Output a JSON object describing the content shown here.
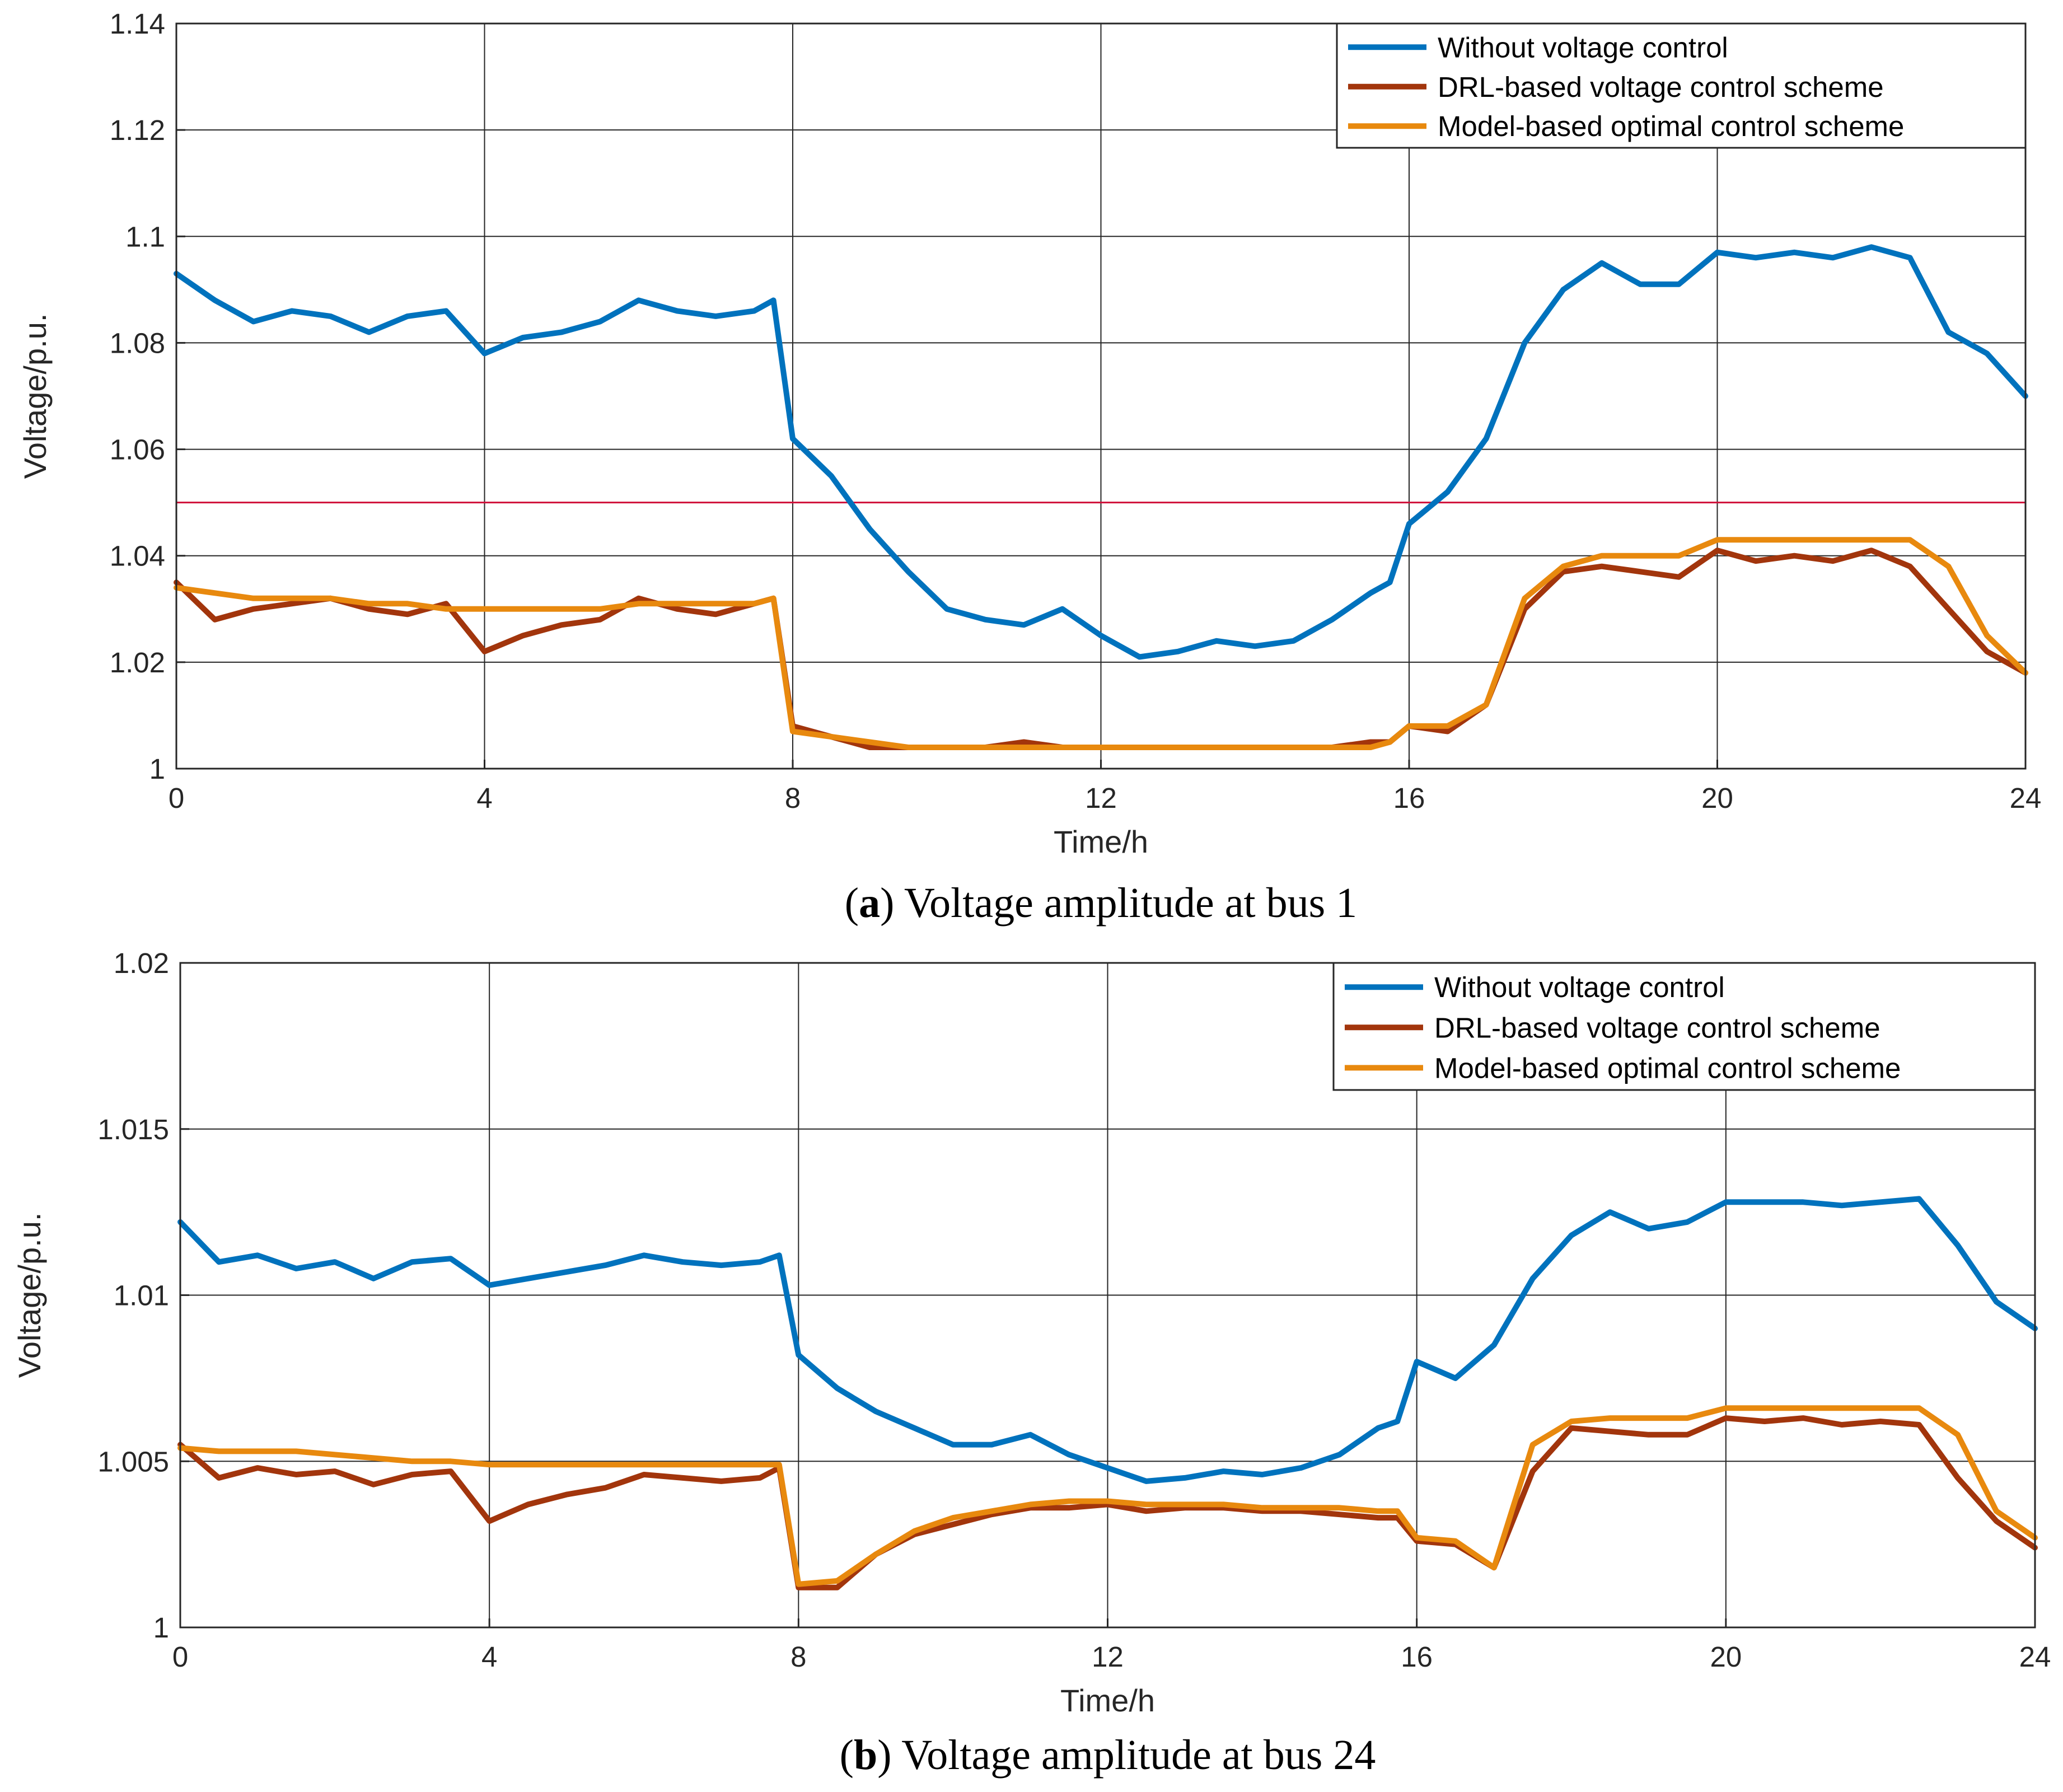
{
  "colors": {
    "without": "#0072BD",
    "drl": "#A2350C",
    "model": "#E8890E",
    "limit": "#D0103A",
    "grid": "#262626"
  },
  "legend": {
    "without": "Without voltage control",
    "drl": "DRL-based voltage control scheme",
    "model": "Model-based optimal control scheme"
  },
  "chart_data": [
    {
      "type": "line",
      "panel": "a",
      "caption_label": "a",
      "caption_text": "Voltage amplitude at bus 1",
      "xlabel": "Time/h",
      "ylabel": "Voltage/p.u.",
      "xlim": [
        0,
        24
      ],
      "ylim": [
        1,
        1.14
      ],
      "xticks": [
        0,
        4,
        8,
        12,
        16,
        20,
        24
      ],
      "xtick_labels": [
        "0",
        "4",
        "8",
        "12",
        "16",
        "20",
        "24"
      ],
      "yticks": [
        1,
        1.02,
        1.04,
        1.06,
        1.08,
        1.1,
        1.12,
        1.14
      ],
      "ytick_labels": [
        "1",
        "1.02",
        "1.04",
        "1.06",
        "1.08",
        "1.1",
        "1.12",
        "1.14"
      ],
      "legend_position": "top-right",
      "limit_line": 1.05,
      "x": [
        0,
        0.5,
        1,
        1.5,
        2,
        2.5,
        3,
        3.5,
        4,
        4.5,
        5,
        5.5,
        6,
        6.5,
        7,
        7.5,
        7.75,
        8,
        8.5,
        9,
        9.5,
        10,
        10.5,
        11,
        11.5,
        12,
        12.5,
        13,
        13.5,
        14,
        14.5,
        15,
        15.5,
        15.75,
        16,
        16.5,
        17,
        17.5,
        18,
        18.5,
        19,
        19.5,
        20,
        20.5,
        21,
        21.5,
        22,
        22.5,
        23,
        23.5,
        24
      ],
      "series": [
        {
          "key": "without",
          "name": "Without voltage control",
          "values": [
            1.093,
            1.088,
            1.084,
            1.086,
            1.085,
            1.082,
            1.085,
            1.086,
            1.078,
            1.081,
            1.082,
            1.084,
            1.088,
            1.086,
            1.085,
            1.086,
            1.088,
            1.062,
            1.055,
            1.045,
            1.037,
            1.03,
            1.028,
            1.027,
            1.03,
            1.025,
            1.021,
            1.022,
            1.024,
            1.023,
            1.024,
            1.028,
            1.033,
            1.035,
            1.046,
            1.052,
            1.062,
            1.08,
            1.09,
            1.095,
            1.091,
            1.091,
            1.097,
            1.096,
            1.097,
            1.096,
            1.098,
            1.096,
            1.082,
            1.078,
            1.07
          ]
        },
        {
          "key": "drl",
          "name": "DRL-based voltage control scheme",
          "values": [
            1.035,
            1.028,
            1.03,
            1.031,
            1.032,
            1.03,
            1.029,
            1.031,
            1.022,
            1.025,
            1.027,
            1.028,
            1.032,
            1.03,
            1.029,
            1.031,
            1.032,
            1.008,
            1.006,
            1.004,
            1.004,
            1.004,
            1.004,
            1.005,
            1.004,
            1.004,
            1.004,
            1.004,
            1.004,
            1.004,
            1.004,
            1.004,
            1.005,
            1.005,
            1.008,
            1.007,
            1.012,
            1.03,
            1.037,
            1.038,
            1.037,
            1.036,
            1.041,
            1.039,
            1.04,
            1.039,
            1.041,
            1.038,
            1.03,
            1.022,
            1.018
          ]
        },
        {
          "key": "model",
          "name": "Model-based optimal control scheme",
          "values": [
            1.034,
            1.033,
            1.032,
            1.032,
            1.032,
            1.031,
            1.031,
            1.03,
            1.03,
            1.03,
            1.03,
            1.03,
            1.031,
            1.031,
            1.031,
            1.031,
            1.032,
            1.007,
            1.006,
            1.005,
            1.004,
            1.004,
            1.004,
            1.004,
            1.004,
            1.004,
            1.004,
            1.004,
            1.004,
            1.004,
            1.004,
            1.004,
            1.004,
            1.005,
            1.008,
            1.008,
            1.012,
            1.032,
            1.038,
            1.04,
            1.04,
            1.04,
            1.043,
            1.043,
            1.043,
            1.043,
            1.043,
            1.043,
            1.038,
            1.025,
            1.018
          ]
        }
      ]
    },
    {
      "type": "line",
      "panel": "b",
      "caption_label": "b",
      "caption_text": "Voltage amplitude at bus 24",
      "xlabel": "Time/h",
      "ylabel": "Voltage/p.u.",
      "xlim": [
        0,
        24
      ],
      "ylim": [
        1,
        1.02
      ],
      "xticks": [
        0,
        4,
        8,
        12,
        16,
        20,
        24
      ],
      "xtick_labels": [
        "0",
        "4",
        "8",
        "12",
        "16",
        "20",
        "24"
      ],
      "yticks": [
        1,
        1.005,
        1.01,
        1.015,
        1.02
      ],
      "ytick_labels": [
        "1",
        "1.005",
        "1.01",
        "1.015",
        "1.02"
      ],
      "legend_position": "top-right",
      "x": [
        0,
        0.5,
        1,
        1.5,
        2,
        2.5,
        3,
        3.5,
        4,
        4.5,
        5,
        5.5,
        6,
        6.5,
        7,
        7.5,
        7.75,
        8,
        8.5,
        9,
        9.5,
        10,
        10.5,
        11,
        11.5,
        12,
        12.5,
        13,
        13.5,
        14,
        14.5,
        15,
        15.5,
        15.75,
        16,
        16.5,
        17,
        17.5,
        18,
        18.5,
        19,
        19.5,
        20,
        20.5,
        21,
        21.5,
        22,
        22.5,
        23,
        23.5,
        24
      ],
      "series": [
        {
          "key": "without",
          "name": "Without voltage control",
          "values": [
            1.0122,
            1.011,
            1.0112,
            1.0108,
            1.011,
            1.0105,
            1.011,
            1.0111,
            1.0103,
            1.0105,
            1.0107,
            1.0109,
            1.0112,
            1.011,
            1.0109,
            1.011,
            1.0112,
            1.0082,
            1.0072,
            1.0065,
            1.006,
            1.0055,
            1.0055,
            1.0058,
            1.0052,
            1.0048,
            1.0044,
            1.0045,
            1.0047,
            1.0046,
            1.0048,
            1.0052,
            1.006,
            1.0062,
            1.008,
            1.0075,
            1.0085,
            1.0105,
            1.0118,
            1.0125,
            1.012,
            1.0122,
            1.0128,
            1.0128,
            1.0128,
            1.0127,
            1.0128,
            1.0129,
            1.0115,
            1.0098,
            1.009
          ]
        },
        {
          "key": "drl",
          "name": "DRL-based voltage control scheme",
          "values": [
            1.0055,
            1.0045,
            1.0048,
            1.0046,
            1.0047,
            1.0043,
            1.0046,
            1.0047,
            1.0032,
            1.0037,
            1.004,
            1.0042,
            1.0046,
            1.0045,
            1.0044,
            1.0045,
            1.0048,
            1.0012,
            1.0012,
            1.0022,
            1.0028,
            1.0031,
            1.0034,
            1.0036,
            1.0036,
            1.0037,
            1.0035,
            1.0036,
            1.0036,
            1.0035,
            1.0035,
            1.0034,
            1.0033,
            1.0033,
            1.0026,
            1.0025,
            1.0018,
            1.0047,
            1.006,
            1.0059,
            1.0058,
            1.0058,
            1.0063,
            1.0062,
            1.0063,
            1.0061,
            1.0062,
            1.0061,
            1.0045,
            1.0032,
            1.0024
          ]
        },
        {
          "key": "model",
          "name": "Model-based optimal control scheme",
          "values": [
            1.0054,
            1.0053,
            1.0053,
            1.0053,
            1.0052,
            1.0051,
            1.005,
            1.005,
            1.0049,
            1.0049,
            1.0049,
            1.0049,
            1.0049,
            1.0049,
            1.0049,
            1.0049,
            1.0049,
            1.0013,
            1.0014,
            1.0022,
            1.0029,
            1.0033,
            1.0035,
            1.0037,
            1.0038,
            1.0038,
            1.0037,
            1.0037,
            1.0037,
            1.0036,
            1.0036,
            1.0036,
            1.0035,
            1.0035,
            1.0027,
            1.0026,
            1.0018,
            1.0055,
            1.0062,
            1.0063,
            1.0063,
            1.0063,
            1.0066,
            1.0066,
            1.0066,
            1.0066,
            1.0066,
            1.0066,
            1.0058,
            1.0035,
            1.0027
          ]
        }
      ]
    }
  ]
}
